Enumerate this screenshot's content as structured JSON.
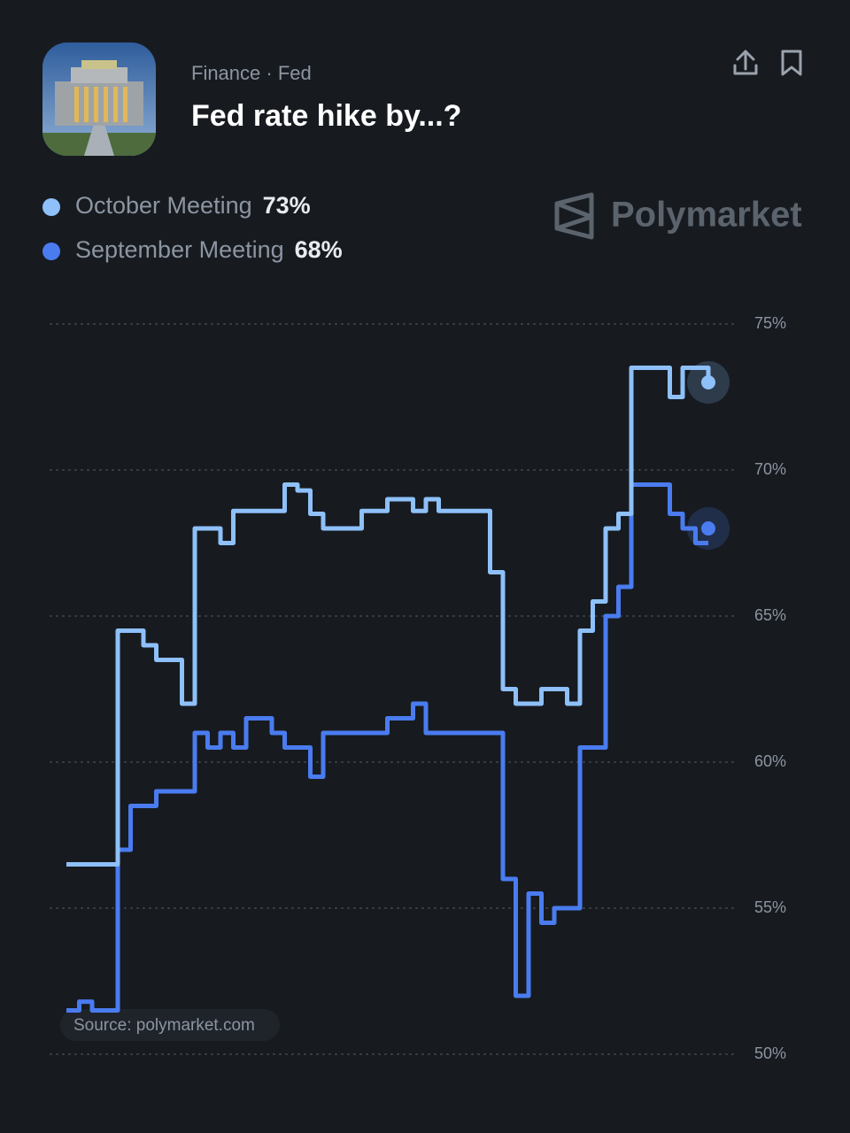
{
  "header": {
    "category": "Finance · Fed",
    "title": "Fed rate hike by...?",
    "brand": "Polymarket",
    "source": "Source: polymarket.com"
  },
  "chart_data": {
    "type": "line",
    "step": true,
    "grid": true,
    "categories": [
      null,
      null,
      null,
      null,
      null,
      null,
      null,
      null,
      null,
      null,
      null,
      null,
      null,
      null,
      null,
      null,
      null,
      null,
      null,
      null,
      null,
      null,
      null,
      null,
      null,
      null,
      null,
      null,
      null,
      null,
      null,
      null,
      null,
      null,
      null,
      null,
      null,
      null,
      null,
      null,
      null,
      null,
      null,
      null,
      null,
      null,
      null,
      null,
      null,
      null,
      null
    ],
    "ylim": [
      50,
      75
    ],
    "yticks": [
      {
        "value": 50,
        "label": "50%"
      },
      {
        "value": 55,
        "label": "55%"
      },
      {
        "value": 60,
        "label": "60%"
      },
      {
        "value": 65,
        "label": "65%"
      },
      {
        "value": 70,
        "label": "70%"
      },
      {
        "value": 75,
        "label": "75%"
      }
    ],
    "series": [
      {
        "name": "October Meeting",
        "color": "#8ec0f9",
        "current_value": 73,
        "current_label": "73%",
        "values": [
          56.5,
          56.5,
          56.5,
          56.5,
          64.5,
          64.5,
          64.0,
          63.5,
          63.5,
          62.0,
          68.0,
          68.0,
          67.5,
          68.6,
          68.6,
          68.6,
          68.6,
          69.5,
          69.3,
          68.5,
          68.0,
          68.0,
          68.0,
          68.6,
          68.6,
          69.0,
          69.0,
          68.6,
          69.0,
          68.6,
          68.6,
          68.6,
          68.6,
          66.5,
          62.5,
          62.0,
          62.0,
          62.5,
          62.5,
          62.0,
          64.5,
          65.5,
          68.0,
          68.5,
          73.5,
          73.5,
          73.5,
          72.5,
          73.5,
          73.5,
          73.0
        ]
      },
      {
        "name": "September Meeting",
        "color": "#4a7cf0",
        "current_value": 68,
        "current_label": "68%",
        "values": [
          51.5,
          51.8,
          51.5,
          51.5,
          57.0,
          58.5,
          58.5,
          59.0,
          59.0,
          59.0,
          61.0,
          60.5,
          61.0,
          60.5,
          61.5,
          61.5,
          61.0,
          60.5,
          60.5,
          59.5,
          61.0,
          61.0,
          61.0,
          61.0,
          61.0,
          61.5,
          61.5,
          62.0,
          61.0,
          61.0,
          61.0,
          61.0,
          61.0,
          61.0,
          56.0,
          52.0,
          55.5,
          54.5,
          55.0,
          55.0,
          60.5,
          60.5,
          65.0,
          66.0,
          69.5,
          69.5,
          69.5,
          68.5,
          68.0,
          67.5,
          67.5
        ]
      }
    ]
  }
}
